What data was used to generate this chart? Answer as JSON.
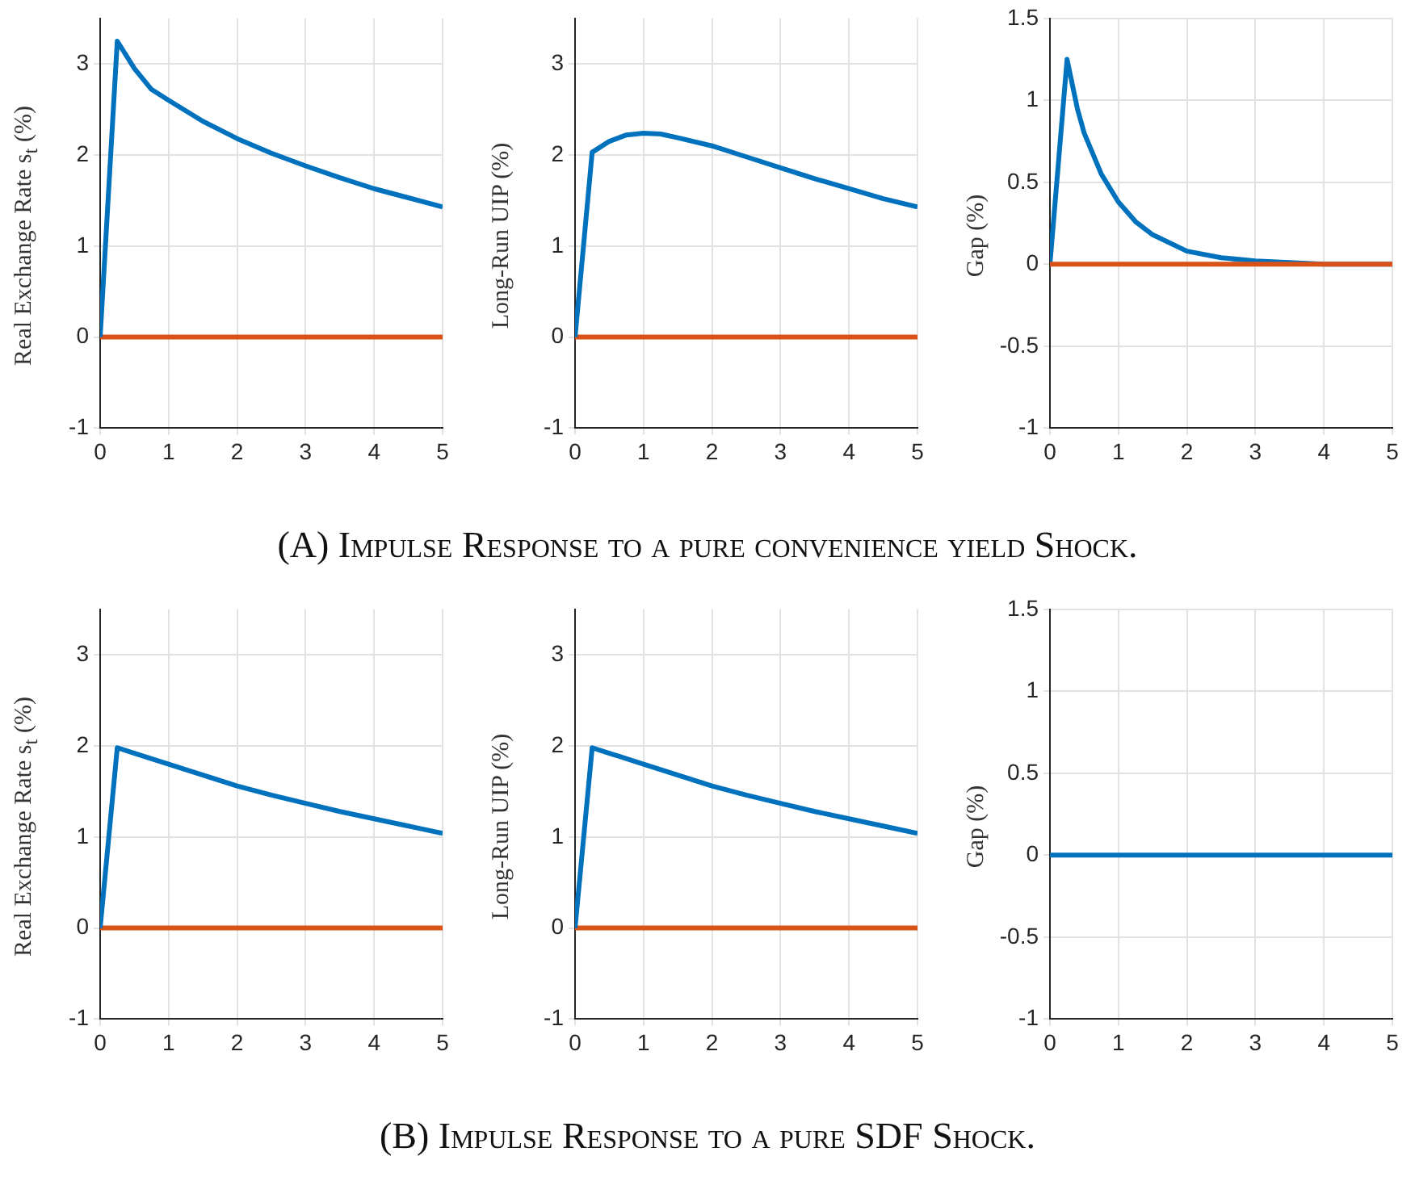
{
  "chart_data": [
    {
      "type": "line",
      "ylabel": "Real Exchange Rate s$_{t}$ (%)",
      "xlim": [
        0,
        5
      ],
      "xticks": [
        0,
        1,
        2,
        3,
        4,
        5
      ],
      "ylim": [
        -1,
        3.5
      ],
      "yticks": [
        -1,
        0,
        1,
        2,
        3
      ],
      "grid": true,
      "legend": false,
      "annotations": [
        "(A) Impulse Response to a pure convenience yield Shock."
      ],
      "series": [
        {
          "color": "#0072bd",
          "x": [
            0,
            0.25,
            0.5,
            0.75,
            1,
            1.5,
            2,
            2.5,
            3,
            3.5,
            4,
            4.5,
            5
          ],
          "values": [
            0,
            3.25,
            2.95,
            2.72,
            2.6,
            2.37,
            2.18,
            2.02,
            1.88,
            1.75,
            1.63,
            1.53,
            1.43
          ]
        },
        {
          "color": "#d95319",
          "x": [
            0,
            5
          ],
          "values": [
            0,
            0
          ]
        }
      ]
    },
    {
      "type": "line",
      "ylabel": "Long-Run UIP (%)",
      "xlim": [
        0,
        5
      ],
      "xticks": [
        0,
        1,
        2,
        3,
        4,
        5
      ],
      "ylim": [
        -1,
        3.5
      ],
      "yticks": [
        -1,
        0,
        1,
        2,
        3
      ],
      "grid": true,
      "legend": false,
      "series": [
        {
          "color": "#0072bd",
          "x": [
            0,
            0.25,
            0.5,
            0.75,
            1,
            1.25,
            1.5,
            2,
            2.5,
            3,
            3.5,
            4,
            4.5,
            5
          ],
          "values": [
            0,
            2.03,
            2.15,
            2.22,
            2.24,
            2.23,
            2.19,
            2.1,
            1.98,
            1.86,
            1.74,
            1.63,
            1.52,
            1.43
          ]
        },
        {
          "color": "#d95319",
          "x": [
            0,
            5
          ],
          "values": [
            0,
            0
          ]
        }
      ]
    },
    {
      "type": "line",
      "ylabel": "Gap (%)",
      "xlim": [
        0,
        5
      ],
      "xticks": [
        0,
        1,
        2,
        3,
        4,
        5
      ],
      "ylim": [
        -1,
        1.5
      ],
      "yticks": [
        -1,
        -0.5,
        0,
        0.5,
        1,
        1.5
      ],
      "grid": true,
      "legend": false,
      "series": [
        {
          "color": "#d95319",
          "x": [
            0,
            5
          ],
          "values": [
            0,
            0
          ]
        },
        {
          "color": "#0072bd",
          "x": [
            0,
            0.25,
            0.4,
            0.5,
            0.75,
            1,
            1.25,
            1.5,
            2,
            2.5,
            3,
            3.5,
            4,
            5
          ],
          "values": [
            0,
            1.25,
            0.95,
            0.8,
            0.55,
            0.38,
            0.26,
            0.18,
            0.08,
            0.04,
            0.02,
            0.01,
            0,
            0
          ]
        }
      ]
    },
    {
      "type": "line",
      "ylabel": "Real Exchange Rate s$_{t}$ (%)",
      "xlim": [
        0,
        5
      ],
      "xticks": [
        0,
        1,
        2,
        3,
        4,
        5
      ],
      "ylim": [
        -1,
        3.5
      ],
      "yticks": [
        -1,
        0,
        1,
        2,
        3
      ],
      "grid": true,
      "legend": false,
      "annotations": [
        "(B) Impulse Response to a pure SDF Shock."
      ],
      "series": [
        {
          "color": "#0072bd",
          "x": [
            0,
            0.25,
            0.5,
            1,
            1.5,
            2,
            2.5,
            3,
            3.5,
            4,
            4.5,
            5
          ],
          "values": [
            0,
            1.98,
            1.92,
            1.8,
            1.68,
            1.56,
            1.46,
            1.37,
            1.28,
            1.2,
            1.12,
            1.04
          ]
        },
        {
          "color": "#d95319",
          "x": [
            0,
            5
          ],
          "values": [
            0,
            0
          ]
        }
      ]
    },
    {
      "type": "line",
      "ylabel": "Long-Run UIP (%)",
      "xlim": [
        0,
        5
      ],
      "xticks": [
        0,
        1,
        2,
        3,
        4,
        5
      ],
      "ylim": [
        -1,
        3.5
      ],
      "yticks": [
        -1,
        0,
        1,
        2,
        3
      ],
      "grid": true,
      "legend": false,
      "series": [
        {
          "color": "#0072bd",
          "x": [
            0,
            0.25,
            0.5,
            1,
            1.5,
            2,
            2.5,
            3,
            3.5,
            4,
            4.5,
            5
          ],
          "values": [
            0,
            1.98,
            1.92,
            1.8,
            1.68,
            1.56,
            1.46,
            1.37,
            1.28,
            1.2,
            1.12,
            1.04
          ]
        },
        {
          "color": "#d95319",
          "x": [
            0,
            5
          ],
          "values": [
            0,
            0
          ]
        }
      ]
    },
    {
      "type": "line",
      "ylabel": "Gap (%)",
      "xlim": [
        0,
        5
      ],
      "xticks": [
        0,
        1,
        2,
        3,
        4,
        5
      ],
      "ylim": [
        -1,
        1.5
      ],
      "yticks": [
        -1,
        -0.5,
        0,
        0.5,
        1,
        1.5
      ],
      "grid": true,
      "legend": false,
      "series": [
        {
          "color": "#0072bd",
          "x": [
            0,
            5
          ],
          "values": [
            0,
            0
          ]
        }
      ]
    }
  ]
}
